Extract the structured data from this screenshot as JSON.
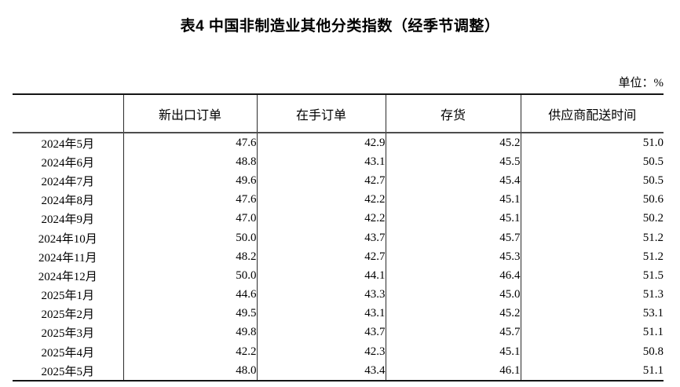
{
  "title": "表4 中国非制造业其他分类指数（经季节调整）",
  "unit_label": "单位：%",
  "table": {
    "columns": [
      "",
      "新出口订单",
      "在手订单",
      "存货",
      "供应商配送时间"
    ],
    "rows": [
      {
        "month": "2024年5月",
        "values": [
          "47.6",
          "42.9",
          "45.2",
          "51.0"
        ]
      },
      {
        "month": "2024年6月",
        "values": [
          "48.8",
          "43.1",
          "45.5",
          "50.5"
        ]
      },
      {
        "month": "2024年7月",
        "values": [
          "49.6",
          "42.7",
          "45.4",
          "50.5"
        ]
      },
      {
        "month": "2024年8月",
        "values": [
          "47.6",
          "42.2",
          "45.1",
          "50.6"
        ]
      },
      {
        "month": "2024年9月",
        "values": [
          "47.0",
          "42.2",
          "45.1",
          "50.2"
        ]
      },
      {
        "month": "2024年10月",
        "values": [
          "50.0",
          "43.7",
          "45.7",
          "51.2"
        ]
      },
      {
        "month": "2024年11月",
        "values": [
          "48.2",
          "42.7",
          "45.3",
          "51.2"
        ]
      },
      {
        "month": "2024年12月",
        "values": [
          "50.0",
          "44.1",
          "46.4",
          "51.5"
        ]
      },
      {
        "month": "2025年1月",
        "values": [
          "44.6",
          "43.3",
          "45.0",
          "51.3"
        ]
      },
      {
        "month": "2025年2月",
        "values": [
          "49.5",
          "43.1",
          "45.2",
          "53.1"
        ]
      },
      {
        "month": "2025年3月",
        "values": [
          "49.8",
          "43.7",
          "45.7",
          "51.1"
        ]
      },
      {
        "month": "2025年4月",
        "values": [
          "42.2",
          "42.3",
          "45.1",
          "50.8"
        ]
      },
      {
        "month": "2025年5月",
        "values": [
          "48.0",
          "43.4",
          "46.1",
          "51.1"
        ]
      }
    ]
  }
}
